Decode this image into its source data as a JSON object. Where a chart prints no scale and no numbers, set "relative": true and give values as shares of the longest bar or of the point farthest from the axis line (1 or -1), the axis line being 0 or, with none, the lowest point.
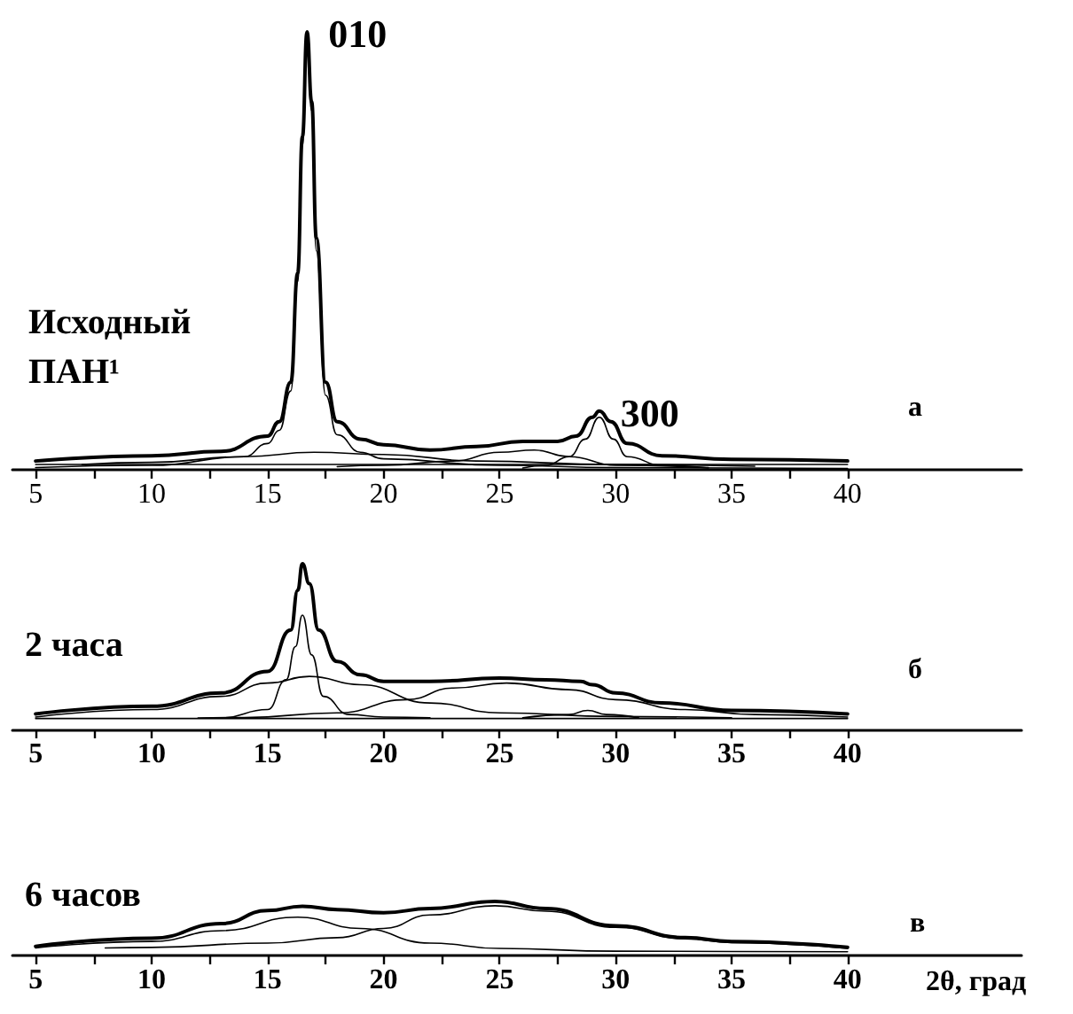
{
  "chart_data": [
    {
      "type": "line",
      "relative": true,
      "marker": "none",
      "line_style": "solid",
      "xlim": [
        4,
        47.5
      ],
      "xticks": [
        5,
        {
          "value": 7.5,
          "label": null
        },
        10,
        {
          "value": 12.5,
          "label": null
        },
        15,
        {
          "value": 17.5,
          "label": null
        },
        20,
        {
          "value": 22.5,
          "label": null
        },
        25,
        {
          "value": 27.5,
          "label": null
        },
        30,
        {
          "value": 32.5,
          "label": null
        },
        35,
        {
          "value": 37.5,
          "label": null
        },
        40
      ],
      "annotations": [
        "Исходный ПАН¹",
        "а",
        {
          "text": "010",
          "x": 16.7,
          "y": 1
        },
        {
          "text": "300",
          "x": 29.3,
          "y": 0.134
        }
      ],
      "series": [
        {
          "color": "#000000",
          "x": [
            5,
            10,
            13,
            15,
            15.5,
            16,
            16.3,
            16.5,
            16.7,
            16.9,
            17.1,
            17.5,
            18,
            19,
            20,
            22,
            24,
            26,
            27.5,
            28.3,
            29,
            29.3,
            29.8,
            30.5,
            32,
            35,
            40
          ],
          "values": [
            0.02,
            0.032,
            0.042,
            0.077,
            0.11,
            0.2,
            0.45,
            0.76,
            1,
            0.84,
            0.53,
            0.2,
            0.11,
            0.07,
            0.057,
            0.045,
            0.053,
            0.065,
            0.065,
            0.077,
            0.12,
            0.134,
            0.11,
            0.06,
            0.032,
            0.024,
            0.02
          ]
        },
        {
          "color": "#000000",
          "x": [
            5,
            10,
            14,
            15,
            15.5,
            16,
            16.3,
            16.5,
            16.7,
            16.9,
            17.1,
            17.5,
            18,
            19,
            20,
            25,
            30,
            40
          ],
          "values": [
            0.005,
            0.01,
            0.03,
            0.06,
            0.09,
            0.18,
            0.43,
            0.74,
            0.97,
            0.82,
            0.5,
            0.17,
            0.08,
            0.04,
            0.025,
            0.01,
            0.005,
            0.003
          ]
        },
        {
          "color": "#000000",
          "x": [
            7,
            10,
            14,
            17,
            20,
            24,
            30,
            36
          ],
          "values": [
            0.012,
            0.017,
            0.03,
            0.04,
            0.035,
            0.02,
            0.012,
            0.008
          ]
        },
        {
          "color": "#000000",
          "x": [
            18,
            20,
            23,
            25,
            26.5,
            28,
            30,
            34
          ],
          "values": [
            0.007,
            0.01,
            0.02,
            0.04,
            0.045,
            0.03,
            0.01,
            0.005
          ]
        },
        {
          "color": "#000000",
          "x": [
            26,
            27,
            28,
            28.7,
            29.3,
            29.9,
            30.5,
            32,
            34
          ],
          "values": [
            0.004,
            0.01,
            0.03,
            0.07,
            0.12,
            0.07,
            0.03,
            0.01,
            0.004
          ]
        },
        {
          "color": "#000000",
          "x": [
            5,
            40
          ],
          "values": [
            0.012,
            0.012
          ]
        }
      ]
    },
    {
      "type": "line",
      "relative": true,
      "marker": "none",
      "line_style": "solid",
      "xlim": [
        4,
        47.5
      ],
      "xticks": [
        5,
        {
          "value": 7.5,
          "label": null
        },
        10,
        {
          "value": 12.5,
          "label": null
        },
        15,
        {
          "value": 17.5,
          "label": null
        },
        20,
        {
          "value": 22.5,
          "label": null
        },
        25,
        {
          "value": 27.5,
          "label": null
        },
        30,
        {
          "value": 32.5,
          "label": null
        },
        35,
        {
          "value": 37.5,
          "label": null
        },
        40
      ],
      "annotations": [
        "2 часа",
        "б"
      ],
      "series": [
        {
          "color": "#000000",
          "x": [
            5,
            10,
            13,
            15,
            16,
            16.3,
            16.5,
            16.8,
            17.2,
            18,
            19,
            20,
            22,
            25,
            27,
            28.5,
            29,
            30,
            32,
            35,
            40
          ],
          "values": [
            0.094,
            0.14,
            0.22,
            0.35,
            0.6,
            0.84,
            1,
            0.88,
            0.6,
            0.41,
            0.33,
            0.29,
            0.29,
            0.31,
            0.3,
            0.29,
            0.27,
            0.22,
            0.16,
            0.115,
            0.094
          ]
        },
        {
          "color": "#000000",
          "x": [
            12,
            13,
            15,
            15.8,
            16.2,
            16.5,
            16.9,
            17.4,
            18.5,
            20,
            22
          ],
          "values": [
            0.068,
            0.07,
            0.12,
            0.3,
            0.5,
            0.69,
            0.45,
            0.2,
            0.09,
            0.075,
            0.07
          ]
        },
        {
          "color": "#000000",
          "x": [
            5,
            10,
            13,
            15,
            16.8,
            19,
            22,
            25,
            30,
            35
          ],
          "values": [
            0.075,
            0.12,
            0.2,
            0.28,
            0.32,
            0.27,
            0.16,
            0.1,
            0.078,
            0.07
          ]
        },
        {
          "color": "#000000",
          "x": [
            12,
            14,
            18,
            21,
            23,
            25.3,
            28,
            30,
            33,
            36,
            40
          ],
          "values": [
            0.068,
            0.072,
            0.1,
            0.18,
            0.25,
            0.28,
            0.24,
            0.18,
            0.12,
            0.09,
            0.075
          ]
        },
        {
          "color": "#000000",
          "x": [
            26,
            28,
            28.8,
            29.6,
            31
          ],
          "values": [
            0.07,
            0.09,
            0.115,
            0.09,
            0.07
          ]
        },
        {
          "color": "#000000",
          "x": [
            5,
            40
          ],
          "values": [
            0.066,
            0.066
          ]
        }
      ]
    },
    {
      "type": "line",
      "relative": true,
      "marker": "none",
      "line_style": "solid",
      "xlim": [
        4,
        47.5
      ],
      "xticks": [
        5,
        {
          "value": 7.5,
          "label": null
        },
        10,
        {
          "value": 12.5,
          "label": null
        },
        15,
        {
          "value": 17.5,
          "label": null
        },
        20,
        {
          "value": 22.5,
          "label": null
        },
        25,
        {
          "value": 27.5,
          "label": null
        },
        30,
        {
          "value": 32.5,
          "label": null
        },
        35,
        {
          "value": 37.5,
          "label": null
        },
        40
      ],
      "xlabel": "2θ, град",
      "annotations": [
        "6 часов",
        "в"
      ],
      "series": [
        {
          "color": "#000000",
          "x": [
            5,
            10,
            13,
            15,
            16.5,
            18,
            20,
            22,
            24.8,
            27,
            30,
            33,
            35,
            40
          ],
          "values": [
            0.17,
            0.32,
            0.59,
            0.83,
            0.91,
            0.85,
            0.79,
            0.87,
            1,
            0.87,
            0.55,
            0.33,
            0.26,
            0.15
          ]
        },
        {
          "color": "#000000",
          "x": [
            5,
            10,
            13,
            16.3,
            19,
            22,
            25,
            30,
            35,
            40
          ],
          "values": [
            0.14,
            0.26,
            0.46,
            0.71,
            0.5,
            0.23,
            0.13,
            0.08,
            0.075,
            0.07
          ]
        },
        {
          "color": "#000000",
          "x": [
            8,
            10,
            15,
            18,
            20,
            22,
            24.8,
            27,
            30,
            33,
            35,
            40
          ],
          "values": [
            0.14,
            0.15,
            0.23,
            0.33,
            0.5,
            0.75,
            0.92,
            0.82,
            0.52,
            0.31,
            0.24,
            0.13
          ]
        }
      ]
    }
  ]
}
